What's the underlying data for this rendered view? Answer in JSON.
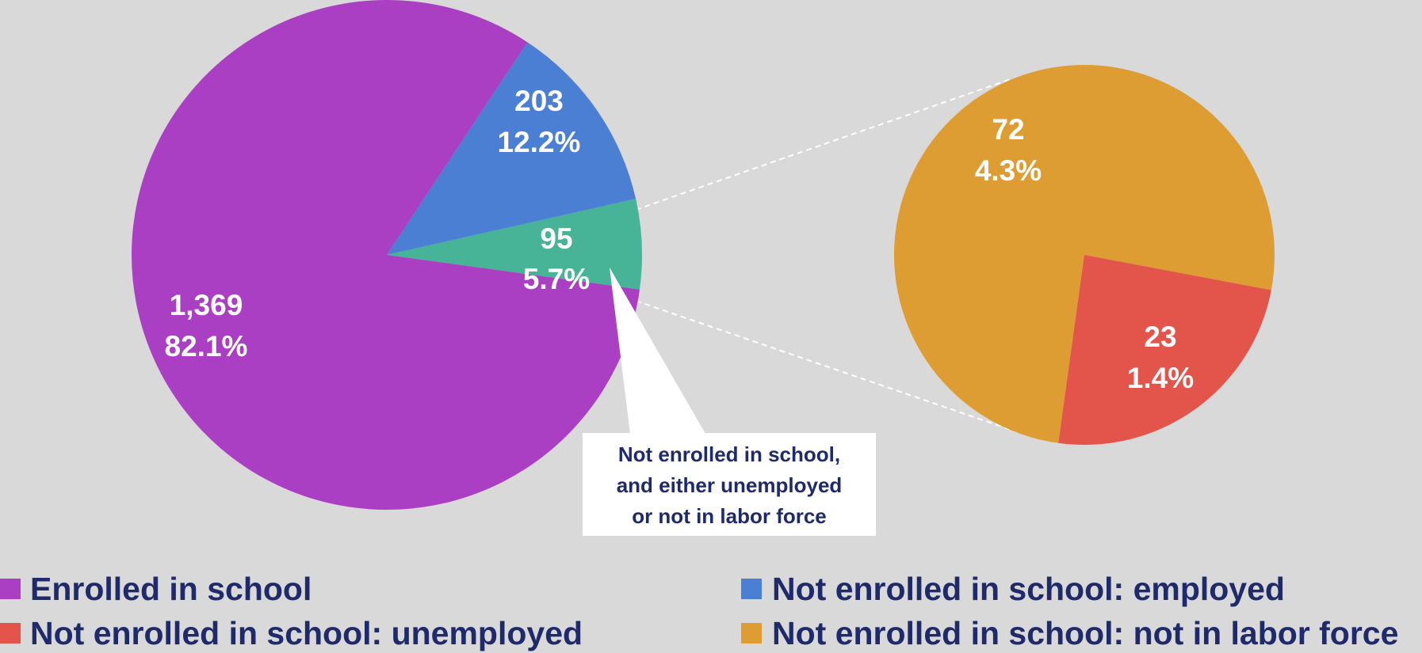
{
  "chart_data": [
    {
      "type": "pie",
      "title": "",
      "slices": [
        {
          "name": "Enrolled in school",
          "value": 1369,
          "value_label": "1,369",
          "percent_label": "82.1%",
          "color": "#ab3fc3"
        },
        {
          "name": "Not enrolled in school:  employed",
          "value": 203,
          "value_label": "203",
          "percent_label": "12.2%",
          "color": "#4a7fd4"
        },
        {
          "name": "Not enrolled in school, and either unemployed or not in labor force",
          "value": 95,
          "value_label": "95",
          "percent_label": "5.7%",
          "color": "#48b497"
        }
      ]
    },
    {
      "type": "pie",
      "title": "",
      "slices": [
        {
          "name": "Not enrolled in school:  not in labor force",
          "value": 72,
          "value_label": "72",
          "percent_label": "4.3%",
          "color": "#dd9d33"
        },
        {
          "name": "Not enrolled in school:  unemployed",
          "value": 23,
          "value_label": "23",
          "percent_label": "1.4%",
          "color": "#e3544b"
        }
      ]
    }
  ],
  "callout": {
    "lines": [
      "Not enrolled in school,",
      "and either unemployed",
      "or not in labor force"
    ]
  },
  "legend": {
    "placement": "bottom",
    "items": [
      {
        "label": "Enrolled in school",
        "color": "#ab3fc3"
      },
      {
        "label": "Not enrolled in school:  employed",
        "color": "#4a7fd4"
      },
      {
        "label": "Not enrolled in school:  unemployed",
        "color": "#e3544b"
      },
      {
        "label": "Not enrolled in school:  not in labor force",
        "color": "#dd9d33"
      }
    ]
  },
  "colors": {
    "background": "#d9d9d9",
    "label_text": "#ffffff",
    "legend_text": "#1f2a6b",
    "callout_text": "#1f2a6b",
    "callout_box": "#ffffff",
    "connector": "#ffffff"
  }
}
